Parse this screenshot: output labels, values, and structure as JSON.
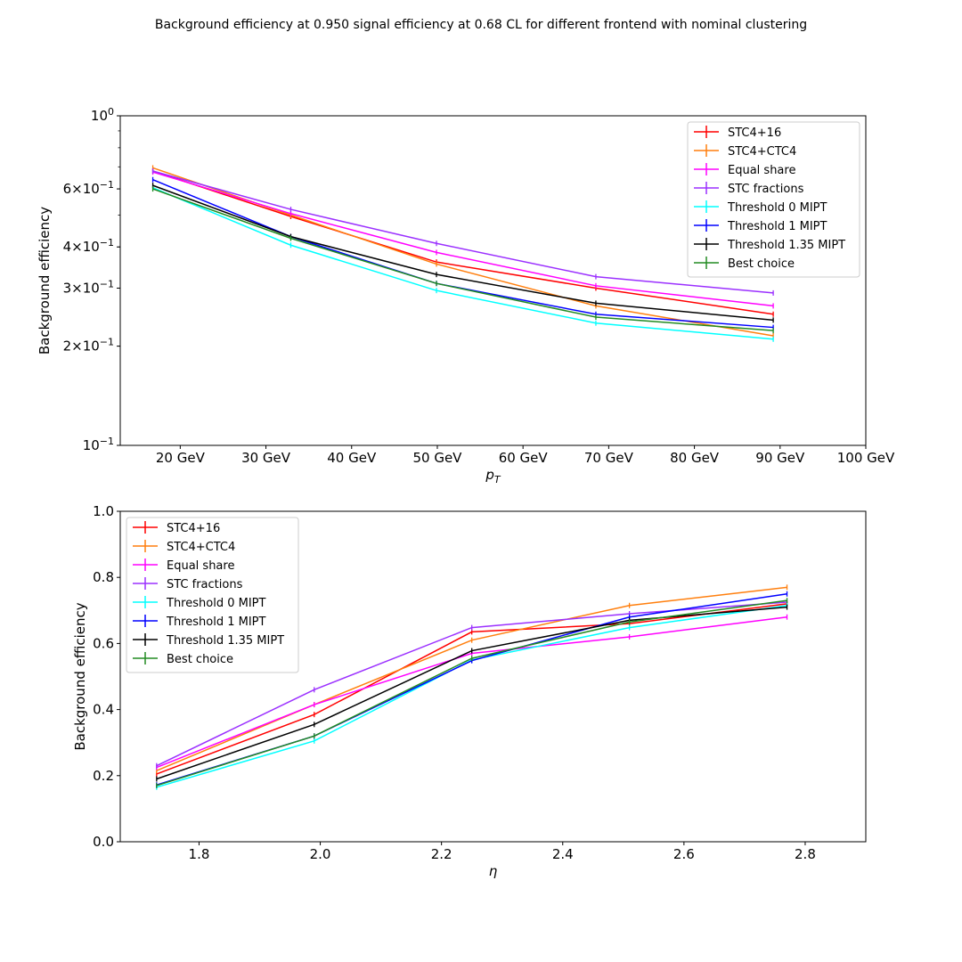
{
  "figure": {
    "title": "Background efficiency at 0.950 signal efficiency at 0.68 CL for different frontend with nominal clustering"
  },
  "chart_data": [
    {
      "type": "line",
      "xlabel": "p_T",
      "ylabel": "Background efficiency",
      "x_scale": "linear",
      "y_scale": "log",
      "xlim": [
        13,
        100
      ],
      "ylim": [
        0.1,
        1.0
      ],
      "x_ticks": [
        20,
        30,
        40,
        50,
        60,
        70,
        80,
        90,
        100
      ],
      "x_tick_labels": [
        "20 GeV",
        "30 GeV",
        "40 GeV",
        "50 GeV",
        "60 GeV",
        "70 GeV",
        "80 GeV",
        "90 GeV",
        "100 GeV"
      ],
      "y_ticks": [
        0.1,
        0.2,
        0.3,
        0.4,
        0.6,
        1.0
      ],
      "y_tick_labels": [
        {
          "base": "10",
          "exp": "−1",
          "mant": ""
        },
        {
          "base": "10",
          "exp": "−1",
          "mant": "2×"
        },
        {
          "base": "10",
          "exp": "−1",
          "mant": "3×"
        },
        {
          "base": "10",
          "exp": "−1",
          "mant": "4×"
        },
        {
          "base": "10",
          "exp": "−1",
          "mant": "6×"
        },
        {
          "base": "10",
          "exp": "0",
          "mant": ""
        }
      ],
      "legend_position": "upper right",
      "x": [
        16.8,
        32.9,
        49.9,
        68.5,
        89.2
      ],
      "series": [
        {
          "name": "STC4+16",
          "color": "#ff0000",
          "values": [
            0.68,
            0.495,
            0.36,
            0.3,
            0.25
          ]
        },
        {
          "name": "STC4+CTC4",
          "color": "#ff7f0e",
          "values": [
            0.695,
            0.5,
            0.355,
            0.265,
            0.215
          ]
        },
        {
          "name": "Equal share",
          "color": "#ff00ff",
          "values": [
            0.675,
            0.505,
            0.385,
            0.305,
            0.265
          ]
        },
        {
          "name": "STC fractions",
          "color": "#9b30ff",
          "values": [
            0.68,
            0.52,
            0.41,
            0.325,
            0.29
          ]
        },
        {
          "name": "Threshold 0 MIPT",
          "color": "#00ffff",
          "values": [
            0.605,
            0.405,
            0.295,
            0.235,
            0.21
          ]
        },
        {
          "name": "Threshold 1 MIPT",
          "color": "#0000ff",
          "values": [
            0.64,
            0.43,
            0.31,
            0.25,
            0.228
          ]
        },
        {
          "name": "Threshold 1.35 MIPT",
          "color": "#000000",
          "values": [
            0.615,
            0.43,
            0.33,
            0.27,
            0.24
          ]
        },
        {
          "name": "Best choice",
          "color": "#228b22",
          "values": [
            0.6,
            0.425,
            0.31,
            0.245,
            0.223
          ]
        }
      ]
    },
    {
      "type": "line",
      "xlabel": "η",
      "ylabel": "Background efficiency",
      "x_scale": "linear",
      "y_scale": "linear",
      "xlim": [
        1.67,
        2.9
      ],
      "ylim": [
        0.0,
        1.0
      ],
      "x_ticks": [
        1.8,
        2.0,
        2.2,
        2.4,
        2.6,
        2.8
      ],
      "x_tick_labels": [
        "1.8",
        "2.0",
        "2.2",
        "2.4",
        "2.6",
        "2.8"
      ],
      "y_ticks": [
        0.0,
        0.2,
        0.4,
        0.6,
        0.8,
        1.0
      ],
      "y_tick_labels": [
        "0.0",
        "0.2",
        "0.4",
        "0.6",
        "0.8",
        "1.0"
      ],
      "legend_position": "upper left",
      "x": [
        1.73,
        1.99,
        2.25,
        2.51,
        2.77
      ],
      "series": [
        {
          "name": "STC4+16",
          "color": "#ff0000",
          "values": [
            0.205,
            0.385,
            0.635,
            0.66,
            0.72
          ]
        },
        {
          "name": "STC4+CTC4",
          "color": "#ff7f0e",
          "values": [
            0.215,
            0.415,
            0.61,
            0.715,
            0.77
          ]
        },
        {
          "name": "Equal share",
          "color": "#ff00ff",
          "values": [
            0.225,
            0.415,
            0.57,
            0.62,
            0.68
          ]
        },
        {
          "name": "STC fractions",
          "color": "#9b30ff",
          "values": [
            0.23,
            0.46,
            0.648,
            0.69,
            0.725
          ]
        },
        {
          "name": "Threshold 0 MIPT",
          "color": "#00ffff",
          "values": [
            0.165,
            0.305,
            0.55,
            0.648,
            0.715
          ]
        },
        {
          "name": "Threshold 1 MIPT",
          "color": "#0000ff",
          "values": [
            0.172,
            0.32,
            0.548,
            0.68,
            0.75
          ]
        },
        {
          "name": "Threshold 1.35 MIPT",
          "color": "#000000",
          "values": [
            0.19,
            0.355,
            0.578,
            0.67,
            0.71
          ]
        },
        {
          "name": "Best choice",
          "color": "#228b22",
          "values": [
            0.17,
            0.32,
            0.555,
            0.665,
            0.73
          ]
        }
      ]
    }
  ]
}
